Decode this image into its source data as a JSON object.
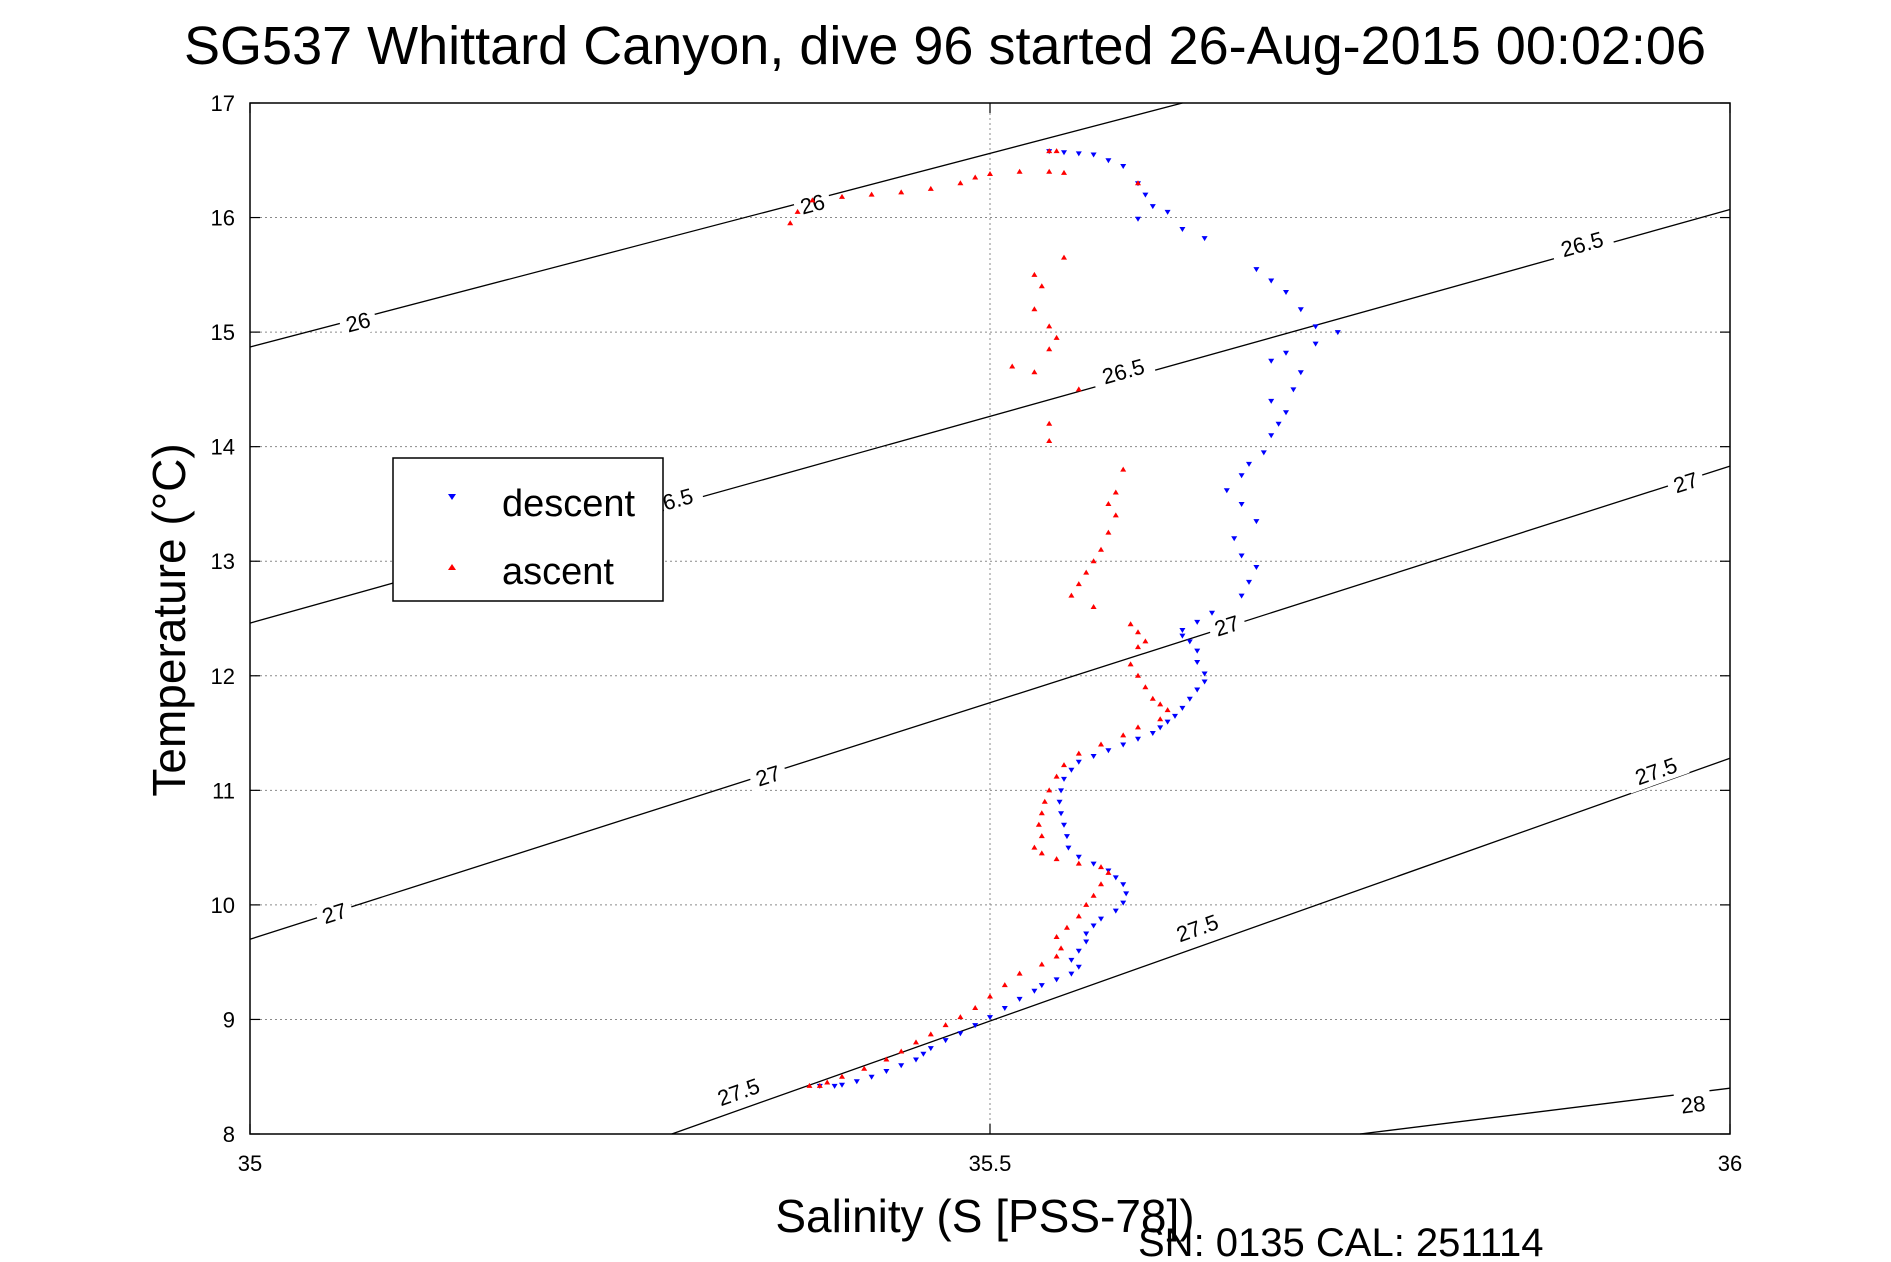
{
  "chart_data": {
    "type": "scatter",
    "title": "SG537 Whittard Canyon, dive 96 started 26-Aug-2015 00:02:06",
    "xlabel": "Salinity (S [PSS-78])",
    "ylabel": "Temperature (°C)",
    "xlim": [
      35,
      36
    ],
    "ylim": [
      8,
      17
    ],
    "xticks": [
      "35",
      "35.5",
      "36"
    ],
    "yticks": [
      "8",
      "9",
      "10",
      "11",
      "12",
      "13",
      "14",
      "15",
      "16",
      "17"
    ],
    "grid": true,
    "legend": {
      "position": "left-middle",
      "entries": [
        "descent",
        "ascent"
      ]
    },
    "footer": "SN: 0135  CAL: 251114",
    "colors": {
      "descent": "#0000ff",
      "ascent": "#ff0000",
      "contour": "#000000",
      "grid": "#8a8a8a"
    },
    "contours": [
      {
        "label": "26",
        "points": [
          [
            35.0,
            14.87
          ],
          [
            35.63,
            17.0
          ]
        ],
        "label_positions": [
          [
            35.073,
            15.09
          ],
          [
            35.38,
            16.12
          ]
        ]
      },
      {
        "label": "26.5",
        "points": [
          [
            35.0,
            12.46
          ],
          [
            36.0,
            16.07
          ]
        ],
        "label_positions": [
          [
            35.285,
            13.53
          ],
          [
            35.59,
            14.66
          ],
          [
            35.9,
            15.77
          ]
        ]
      },
      {
        "label": "27",
        "points": [
          [
            35.0,
            9.7
          ],
          [
            36.0,
            13.83
          ]
        ],
        "label_positions": [
          [
            35.057,
            9.93
          ],
          [
            35.35,
            11.13
          ],
          [
            35.66,
            12.44
          ],
          [
            35.97,
            13.69
          ]
        ]
      },
      {
        "label": "27.5",
        "points": [
          [
            35.285,
            8.0
          ],
          [
            36.0,
            11.28
          ]
        ],
        "label_positions": [
          [
            35.33,
            8.37
          ],
          [
            35.64,
            9.8
          ],
          [
            35.95,
            11.17
          ]
        ]
      },
      {
        "label": "28",
        "points": [
          [
            35.75,
            8.0
          ],
          [
            36.0,
            8.4
          ]
        ],
        "label_positions": [
          [
            35.975,
            8.26
          ]
        ]
      }
    ],
    "series": [
      {
        "name": "descent",
        "color": "#0000ff",
        "points": [
          [
            35.54,
            16.58
          ],
          [
            35.55,
            16.57
          ],
          [
            35.56,
            16.56
          ],
          [
            35.57,
            16.55
          ],
          [
            35.58,
            16.5
          ],
          [
            35.59,
            16.45
          ],
          [
            35.6,
            16.3
          ],
          [
            35.605,
            16.2
          ],
          [
            35.61,
            16.1
          ],
          [
            35.62,
            16.05
          ],
          [
            35.6,
            15.99
          ],
          [
            35.63,
            15.9
          ],
          [
            35.645,
            15.82
          ],
          [
            35.68,
            15.55
          ],
          [
            35.69,
            15.45
          ],
          [
            35.7,
            15.35
          ],
          [
            35.71,
            15.2
          ],
          [
            35.72,
            15.05
          ],
          [
            35.735,
            15.0
          ],
          [
            35.72,
            14.9
          ],
          [
            35.7,
            14.82
          ],
          [
            35.69,
            14.75
          ],
          [
            35.71,
            14.65
          ],
          [
            35.705,
            14.5
          ],
          [
            35.69,
            14.4
          ],
          [
            35.7,
            14.3
          ],
          [
            35.695,
            14.2
          ],
          [
            35.69,
            14.1
          ],
          [
            35.685,
            13.95
          ],
          [
            35.675,
            13.85
          ],
          [
            35.67,
            13.75
          ],
          [
            35.66,
            13.62
          ],
          [
            35.67,
            13.5
          ],
          [
            35.68,
            13.35
          ],
          [
            35.665,
            13.2
          ],
          [
            35.67,
            13.05
          ],
          [
            35.68,
            12.95
          ],
          [
            35.675,
            12.82
          ],
          [
            35.67,
            12.7
          ],
          [
            35.65,
            12.55
          ],
          [
            35.64,
            12.47
          ],
          [
            35.63,
            12.4
          ],
          [
            35.63,
            12.35
          ],
          [
            35.635,
            12.3
          ],
          [
            35.64,
            12.22
          ],
          [
            35.64,
            12.12
          ],
          [
            35.645,
            12.02
          ],
          [
            35.645,
            11.95
          ],
          [
            35.64,
            11.88
          ],
          [
            35.635,
            11.8
          ],
          [
            35.63,
            11.72
          ],
          [
            35.625,
            11.65
          ],
          [
            35.62,
            11.6
          ],
          [
            35.615,
            11.55
          ],
          [
            35.61,
            11.5
          ],
          [
            35.6,
            11.45
          ],
          [
            35.59,
            11.4
          ],
          [
            35.58,
            11.35
          ],
          [
            35.57,
            11.3
          ],
          [
            35.56,
            11.25
          ],
          [
            35.555,
            11.18
          ],
          [
            35.55,
            11.1
          ],
          [
            35.548,
            11.0
          ],
          [
            35.547,
            10.9
          ],
          [
            35.548,
            10.8
          ],
          [
            35.55,
            10.7
          ],
          [
            35.552,
            10.6
          ],
          [
            35.553,
            10.5
          ],
          [
            35.56,
            10.42
          ],
          [
            35.57,
            10.36
          ],
          [
            35.58,
            10.3
          ],
          [
            35.585,
            10.24
          ],
          [
            35.59,
            10.18
          ],
          [
            35.592,
            10.1
          ],
          [
            35.59,
            10.02
          ],
          [
            35.585,
            9.95
          ],
          [
            35.575,
            9.88
          ],
          [
            35.57,
            9.82
          ],
          [
            35.565,
            9.75
          ],
          [
            35.565,
            9.68
          ],
          [
            35.56,
            9.6
          ],
          [
            35.555,
            9.52
          ],
          [
            35.56,
            9.46
          ],
          [
            35.555,
            9.4
          ],
          [
            35.545,
            9.35
          ],
          [
            35.535,
            9.3
          ],
          [
            35.53,
            9.25
          ],
          [
            35.52,
            9.18
          ],
          [
            35.51,
            9.1
          ],
          [
            35.5,
            9.02
          ],
          [
            35.49,
            8.95
          ],
          [
            35.48,
            8.88
          ],
          [
            35.47,
            8.82
          ],
          [
            35.46,
            8.75
          ],
          [
            35.455,
            8.7
          ],
          [
            35.45,
            8.65
          ],
          [
            35.44,
            8.6
          ],
          [
            35.43,
            8.55
          ],
          [
            35.42,
            8.5
          ],
          [
            35.41,
            8.46
          ],
          [
            35.4,
            8.43
          ],
          [
            35.395,
            8.42
          ],
          [
            35.385,
            8.42
          ]
        ]
      },
      {
        "name": "ascent",
        "color": "#ff0000",
        "points": [
          [
            35.37,
            16.05
          ],
          [
            35.365,
            15.95
          ],
          [
            35.38,
            16.15
          ],
          [
            35.4,
            16.18
          ],
          [
            35.42,
            16.2
          ],
          [
            35.44,
            16.22
          ],
          [
            35.46,
            16.25
          ],
          [
            35.48,
            16.3
          ],
          [
            35.49,
            16.35
          ],
          [
            35.5,
            16.38
          ],
          [
            35.52,
            16.4
          ],
          [
            35.54,
            16.4
          ],
          [
            35.55,
            16.39
          ],
          [
            35.54,
            16.58
          ],
          [
            35.545,
            16.58
          ],
          [
            35.6,
            16.3
          ],
          [
            35.55,
            15.65
          ],
          [
            35.53,
            15.5
          ],
          [
            35.535,
            15.4
          ],
          [
            35.53,
            15.2
          ],
          [
            35.54,
            15.05
          ],
          [
            35.545,
            14.95
          ],
          [
            35.54,
            14.85
          ],
          [
            35.515,
            14.7
          ],
          [
            35.53,
            14.65
          ],
          [
            35.56,
            14.5
          ],
          [
            35.54,
            14.2
          ],
          [
            35.54,
            14.05
          ],
          [
            35.59,
            13.8
          ],
          [
            35.585,
            13.6
          ],
          [
            35.58,
            13.5
          ],
          [
            35.585,
            13.4
          ],
          [
            35.58,
            13.25
          ],
          [
            35.575,
            13.1
          ],
          [
            35.57,
            13.0
          ],
          [
            35.565,
            12.9
          ],
          [
            35.56,
            12.8
          ],
          [
            35.555,
            12.7
          ],
          [
            35.57,
            12.6
          ],
          [
            35.595,
            12.45
          ],
          [
            35.6,
            12.38
          ],
          [
            35.605,
            12.3
          ],
          [
            35.6,
            12.25
          ],
          [
            35.595,
            12.1
          ],
          [
            35.6,
            12.0
          ],
          [
            35.605,
            11.9
          ],
          [
            35.61,
            11.8
          ],
          [
            35.615,
            11.75
          ],
          [
            35.62,
            11.7
          ],
          [
            35.615,
            11.62
          ],
          [
            35.6,
            11.55
          ],
          [
            35.59,
            11.48
          ],
          [
            35.575,
            11.4
          ],
          [
            35.56,
            11.32
          ],
          [
            35.55,
            11.22
          ],
          [
            35.545,
            11.12
          ],
          [
            35.54,
            11.0
          ],
          [
            35.537,
            10.9
          ],
          [
            35.535,
            10.8
          ],
          [
            35.533,
            10.7
          ],
          [
            35.535,
            10.6
          ],
          [
            35.53,
            10.5
          ],
          [
            35.535,
            10.45
          ],
          [
            35.545,
            10.4
          ],
          [
            35.56,
            10.36
          ],
          [
            35.575,
            10.33
          ],
          [
            35.58,
            10.28
          ],
          [
            35.575,
            10.18
          ],
          [
            35.57,
            10.08
          ],
          [
            35.565,
            10.0
          ],
          [
            35.56,
            9.9
          ],
          [
            35.552,
            9.8
          ],
          [
            35.545,
            9.72
          ],
          [
            35.548,
            9.62
          ],
          [
            35.545,
            9.55
          ],
          [
            35.535,
            9.48
          ],
          [
            35.52,
            9.4
          ],
          [
            35.51,
            9.3
          ],
          [
            35.5,
            9.2
          ],
          [
            35.49,
            9.1
          ],
          [
            35.48,
            9.02
          ],
          [
            35.47,
            8.95
          ],
          [
            35.46,
            8.87
          ],
          [
            35.45,
            8.8
          ],
          [
            35.44,
            8.72
          ],
          [
            35.43,
            8.65
          ],
          [
            35.415,
            8.57
          ],
          [
            35.4,
            8.5
          ],
          [
            35.39,
            8.45
          ],
          [
            35.385,
            8.42
          ],
          [
            35.378,
            8.42
          ]
        ]
      }
    ]
  }
}
